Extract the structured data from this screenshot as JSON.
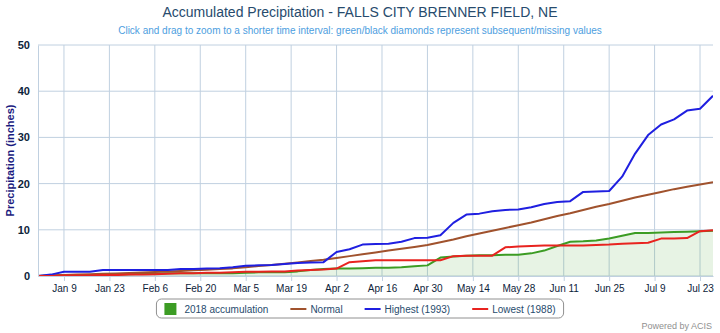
{
  "chart_data": {
    "type": "line",
    "title": "Accumulated Precipitation - FALLS CITY BRENNER FIELD, NE",
    "subtitle": "Click and drag to zoom to a shorter time interval: green/black diamonds represent subsequent/missing values",
    "y_label": "Precipitation (inches)",
    "x": [
      1,
      5,
      9,
      13,
      17,
      21,
      25,
      29,
      33,
      37,
      41,
      45,
      49,
      53,
      57,
      61,
      65,
      69,
      73,
      77,
      81,
      85,
      89,
      93,
      97,
      101,
      105,
      109,
      113,
      117,
      121,
      125,
      129,
      133,
      137,
      141,
      145,
      149,
      153,
      157,
      161,
      165,
      169,
      173,
      177,
      181,
      185,
      189,
      193,
      197,
      201,
      205,
      209
    ],
    "xlim": [
      1,
      209
    ],
    "xticks": [
      {
        "value": 9,
        "label": "Jan 9"
      },
      {
        "value": 23,
        "label": "Jan 23"
      },
      {
        "value": 37,
        "label": "Feb 6"
      },
      {
        "value": 51,
        "label": "Feb 20"
      },
      {
        "value": 65,
        "label": "Mar 5"
      },
      {
        "value": 79,
        "label": "Mar 19"
      },
      {
        "value": 93,
        "label": "Apr 2"
      },
      {
        "value": 107,
        "label": "Apr 16"
      },
      {
        "value": 121,
        "label": "Apr 30"
      },
      {
        "value": 135,
        "label": "May 14"
      },
      {
        "value": 149,
        "label": "May 28"
      },
      {
        "value": 163,
        "label": "Jun 11"
      },
      {
        "value": 177,
        "label": "Jun 25"
      },
      {
        "value": 191,
        "label": "Jul 9"
      },
      {
        "value": 205,
        "label": "Jul 23"
      }
    ],
    "ylim": [
      0,
      50
    ],
    "yticks": [
      0,
      10,
      20,
      30,
      40,
      50
    ],
    "grid": true,
    "legend": "bottom",
    "series": [
      {
        "name": "2018 accumulation",
        "type": "area",
        "color": "#3c9c24",
        "values": [
          0,
          0.1,
          0.2,
          0.2,
          0.2,
          0.3,
          0.3,
          0.4,
          0.5,
          0.5,
          0.6,
          0.6,
          0.6,
          0.6,
          0.6,
          0.6,
          0.7,
          0.8,
          0.8,
          0.8,
          1.0,
          1.3,
          1.5,
          1.6,
          1.6,
          1.7,
          1.8,
          1.8,
          1.9,
          2.1,
          2.3,
          4.0,
          4.2,
          4.4,
          4.5,
          4.5,
          4.6,
          4.6,
          4.9,
          5.5,
          6.5,
          7.4,
          7.5,
          7.7,
          8.1,
          8.7,
          9.3,
          9.3,
          9.4,
          9.5,
          9.6,
          9.7,
          9.8
        ]
      },
      {
        "name": "Normal",
        "type": "line",
        "color": "#a0522d",
        "values": [
          0,
          0.1,
          0.2,
          0.3,
          0.4,
          0.5,
          0.55,
          0.65,
          0.75,
          0.85,
          1.0,
          1.1,
          1.25,
          1.35,
          1.5,
          1.65,
          1.9,
          2.15,
          2.4,
          2.65,
          2.95,
          3.25,
          3.5,
          3.9,
          4.3,
          4.7,
          5.1,
          5.5,
          5.9,
          6.3,
          6.7,
          7.3,
          7.9,
          8.6,
          9.2,
          9.8,
          10.4,
          11.0,
          11.6,
          12.3,
          13.0,
          13.6,
          14.3,
          15.0,
          15.6,
          16.3,
          17.0,
          17.6,
          18.2,
          18.8,
          19.3,
          19.8,
          20.3
        ]
      },
      {
        "name": "Highest (1993)",
        "type": "line",
        "color": "#1f1fe0",
        "values": [
          0,
          0.3,
          0.9,
          0.9,
          0.9,
          1.3,
          1.3,
          1.3,
          1.3,
          1.3,
          1.3,
          1.5,
          1.5,
          1.6,
          1.7,
          1.9,
          2.2,
          2.3,
          2.4,
          2.6,
          2.8,
          2.9,
          3.0,
          5.2,
          5.8,
          6.8,
          6.9,
          7.0,
          7.4,
          8.2,
          8.3,
          8.8,
          11.5,
          13.3,
          13.5,
          14.0,
          14.3,
          14.4,
          14.9,
          15.6,
          16.0,
          16.2,
          18.2,
          18.3,
          18.4,
          21.5,
          26.5,
          30.5,
          32.8,
          33.9,
          35.8,
          36.2,
          39.0
        ]
      },
      {
        "name": "Lowest (1988)",
        "type": "line",
        "color": "#e8231f",
        "values": [
          0,
          0,
          0.1,
          0.1,
          0.1,
          0.2,
          0.2,
          0.3,
          0.3,
          0.4,
          0.5,
          0.6,
          0.6,
          0.7,
          0.7,
          0.8,
          0.9,
          0.9,
          1.0,
          1.0,
          1.2,
          1.3,
          1.4,
          1.6,
          3.0,
          3.2,
          3.4,
          3.4,
          3.4,
          3.4,
          3.4,
          3.4,
          4.3,
          4.4,
          4.4,
          4.4,
          6.2,
          6.4,
          6.5,
          6.6,
          6.6,
          6.6,
          6.6,
          6.7,
          6.8,
          7.0,
          7.1,
          7.2,
          8.1,
          8.1,
          8.2,
          9.7,
          9.9
        ]
      }
    ],
    "annotations": [
      "Powered by ACIS"
    ]
  }
}
